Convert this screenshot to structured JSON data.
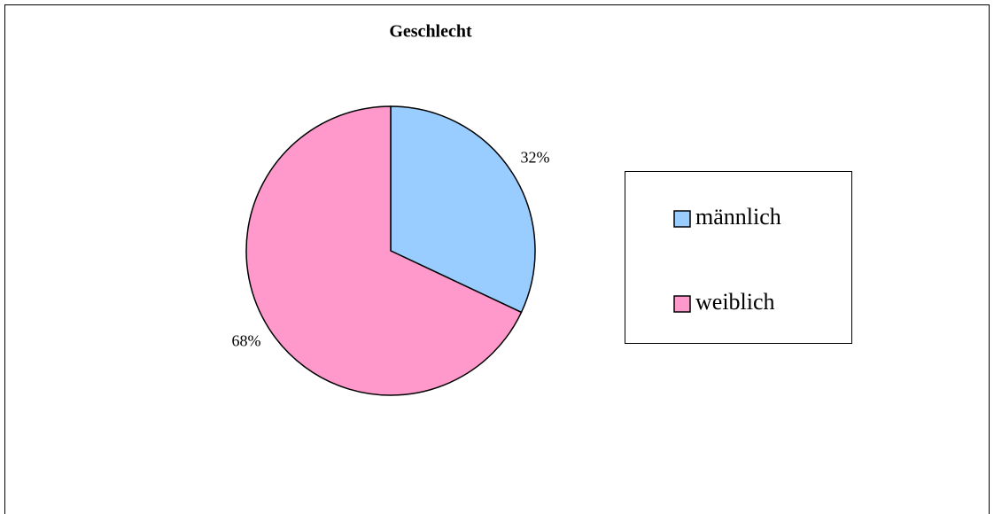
{
  "chart_data": {
    "type": "pie",
    "title": "Geschlecht",
    "categories": [
      "männlich",
      "weiblich"
    ],
    "values": [
      32,
      68
    ],
    "value_labels": [
      "32%",
      "68%"
    ],
    "colors": [
      "#99ccff",
      "#ff99cc"
    ],
    "legend": "right"
  }
}
